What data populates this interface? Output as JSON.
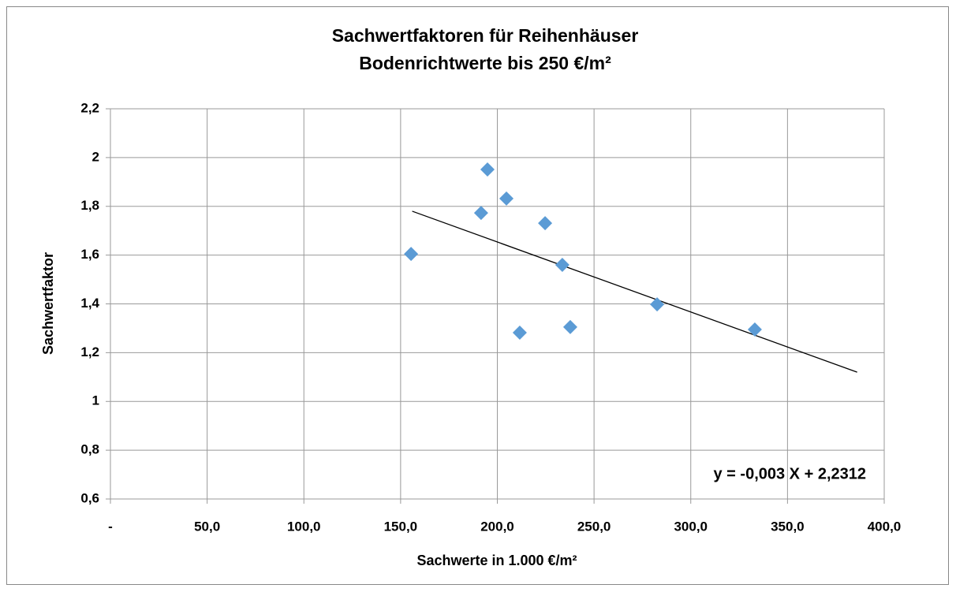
{
  "chart_data": {
    "type": "scatter",
    "title": "Sachwertfaktoren für Reihenhäuser",
    "subtitle": "Bodenrichtwerte bis 250 €/m²",
    "x_label": "Sachwerte in 1.000 €/m²",
    "y_label": "Sachwertfaktor",
    "annotation": "y = -0,003 X + 2,2312",
    "color": "#5b9bd5",
    "x": [
      155.4,
      194.9,
      191.6,
      204.7,
      224.7,
      233.6,
      211.6,
      237.7,
      282.6,
      333.1
    ],
    "values": [
      1.605,
      1.951,
      1.773,
      1.832,
      1.731,
      1.56,
      1.282,
      1.305,
      1.398,
      1.295
    ],
    "trendline": {
      "color": "#000000",
      "x": [
        156,
        386
      ],
      "values": [
        1.78,
        1.12
      ]
    },
    "xlim": [
      0,
      400
    ],
    "xticks": [
      {
        "value": 0,
        "label": "-"
      },
      {
        "value": 50,
        "label": "50,0"
      },
      {
        "value": 100,
        "label": "100,0"
      },
      {
        "value": 150,
        "label": "150,0"
      },
      {
        "value": 200,
        "label": "200,0"
      },
      {
        "value": 250,
        "label": "250,0"
      },
      {
        "value": 300,
        "label": "300,0"
      },
      {
        "value": 350,
        "label": "350,0"
      },
      {
        "value": 400,
        "label": "400,0"
      }
    ],
    "ylim": [
      0.6,
      2.2
    ],
    "yticks": [
      {
        "value": 0.6,
        "label": "0,6"
      },
      {
        "value": 0.8,
        "label": "0,8"
      },
      1,
      {
        "value": 1.2,
        "label": "1,2"
      },
      {
        "value": 1.4,
        "label": "1,4"
      },
      {
        "value": 1.6,
        "label": "1,6"
      },
      {
        "value": 1.8,
        "label": "1,8"
      },
      2,
      {
        "value": 2.2,
        "label": "2,2"
      }
    ],
    "grid": true
  }
}
